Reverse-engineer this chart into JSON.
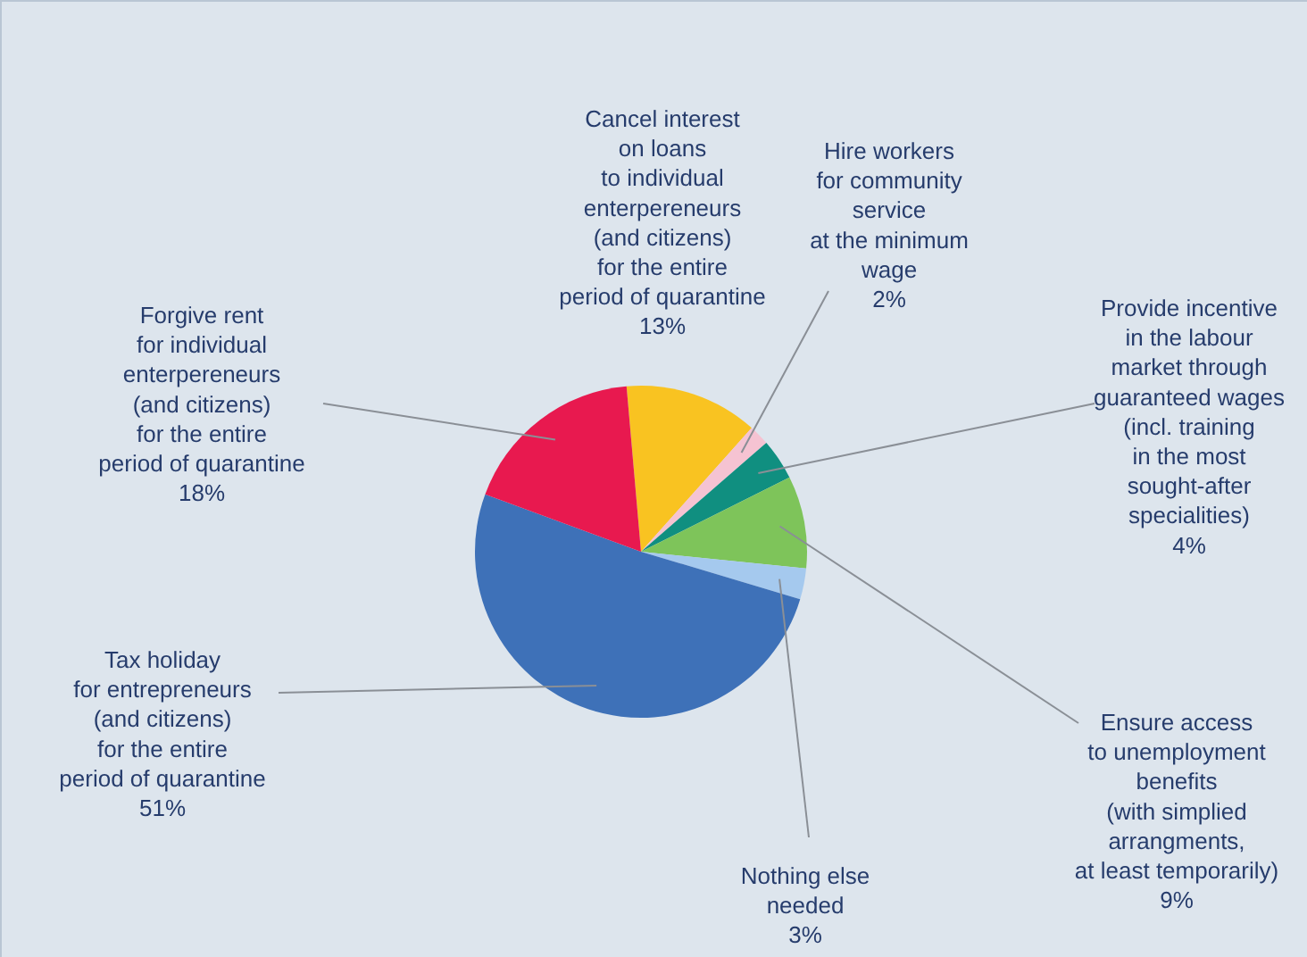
{
  "chart_data": {
    "type": "pie",
    "categories": [
      "Cancel interest\non loans\nto individual\nenterpereneurs\n(and citizens)\nfor the entire\nperiod of quarantine",
      "Hire workers\nfor community\nservice\nat the minimum\nwage",
      "Provide incentive\nin the labour\nmarket through\nguaranteed wages\n(incl. training\nin the most\nsought-after\nspecialities)",
      "Ensure access\nto unemployment\nbenefits\n(with simplied\narrangments,\nat least temporarily)",
      "Nothing else\nneeded",
      "Tax holiday\nfor entrepreneurs\n(and citizens)\nfor the entire\nperiod of quarantine",
      "Forgive rent\nfor individual\nenterpereneurs\n(and citizens)\nfor the entire\nperiod of quarantine"
    ],
    "values": [
      13,
      2,
      4,
      9,
      3,
      51,
      18
    ],
    "value_labels": [
      "13%",
      "2%",
      "4%",
      "9%",
      "3%",
      "51%",
      "18%"
    ],
    "colors": [
      "#f9c321",
      "#f5c3d2",
      "#108f80",
      "#7ec45a",
      "#a5c9ee",
      "#3e71b8",
      "#e8194f"
    ],
    "legend": false
  }
}
